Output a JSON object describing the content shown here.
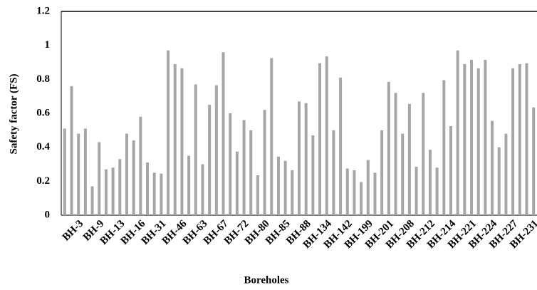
{
  "chart_data": {
    "type": "bar",
    "x_label": "Boreholes",
    "y_label": "Safety factor (FS)",
    "categories": [
      "BH-3",
      null,
      null,
      "BH-9",
      null,
      null,
      "BH-13",
      null,
      null,
      "BH-16",
      null,
      null,
      "BH-31",
      null,
      null,
      "BH-46",
      null,
      null,
      "BH-63",
      null,
      null,
      "BH-67",
      null,
      null,
      "BH-72",
      null,
      null,
      "BH-80",
      null,
      null,
      "BH-85",
      null,
      null,
      "BH-88",
      null,
      null,
      "BH-134",
      null,
      null,
      "BH-142",
      null,
      null,
      "BH-199",
      null,
      null,
      "BH-201",
      null,
      null,
      "BH-208",
      null,
      null,
      "BH-212",
      null,
      null,
      "BH-214",
      null,
      null,
      "BH-221",
      null,
      null,
      "BH-224",
      null,
      null,
      "BH-227",
      null,
      null,
      "BH-231",
      null,
      null
    ],
    "values": [
      0.51,
      0.76,
      0.48,
      0.51,
      0.17,
      0.43,
      0.27,
      0.28,
      0.33,
      0.48,
      0.44,
      0.58,
      0.31,
      0.25,
      0.245,
      0.97,
      0.89,
      0.865,
      0.35,
      0.77,
      0.3,
      0.65,
      0.765,
      0.96,
      0.6,
      0.375,
      0.56,
      0.5,
      0.235,
      0.62,
      0.925,
      0.345,
      0.32,
      0.265,
      0.67,
      0.66,
      0.47,
      0.895,
      0.935,
      0.5,
      0.81,
      0.275,
      0.265,
      0.195,
      0.325,
      0.25,
      0.5,
      0.785,
      0.72,
      0.48,
      0.655,
      0.285,
      0.72,
      0.385,
      0.28,
      0.795,
      0.525,
      0.97,
      0.89,
      0.915,
      0.865,
      0.915,
      0.555,
      0.4,
      0.48,
      0.865,
      0.89,
      0.895,
      0.635
    ],
    "color": "#a6a6a6",
    "ylim": [
      0,
      1.2
    ],
    "yticks": [
      0,
      0.2,
      0.4,
      0.6,
      0.8,
      1,
      1.2
    ],
    "grid": false
  }
}
